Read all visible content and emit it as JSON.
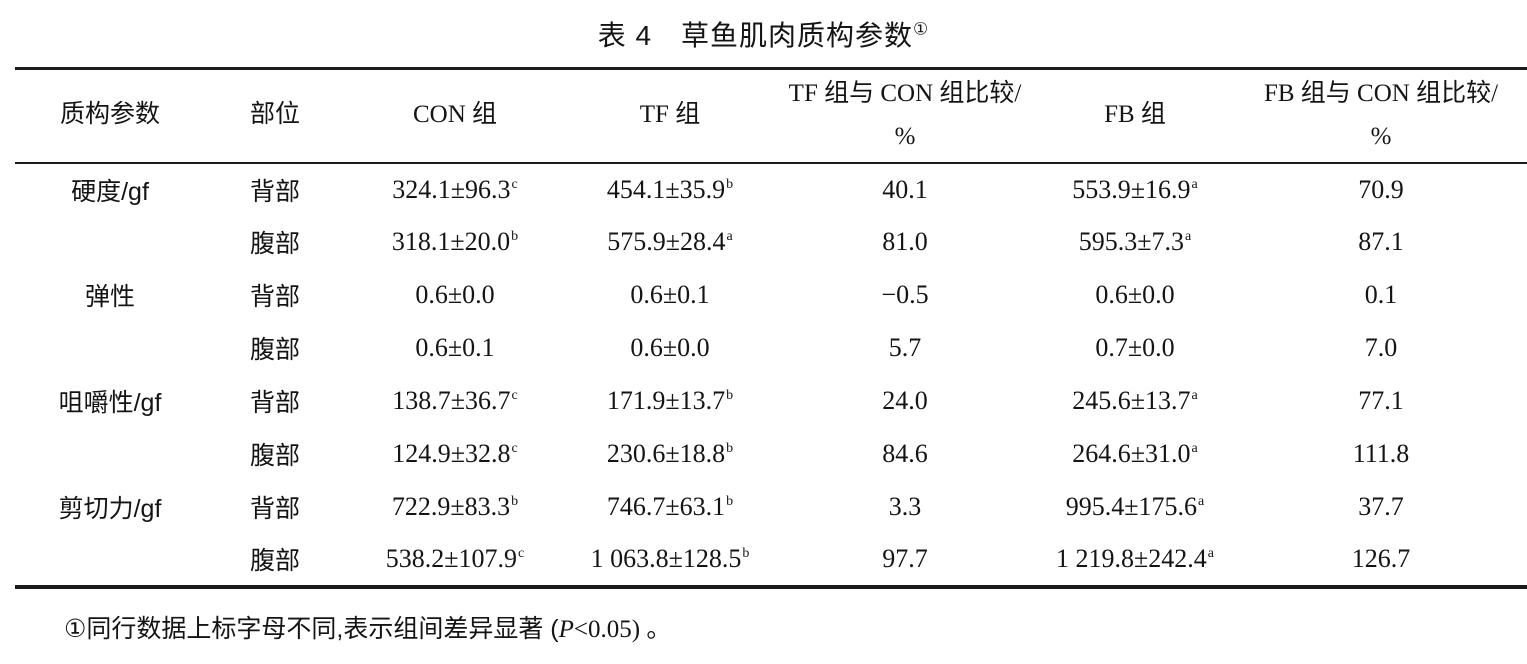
{
  "title": {
    "label": "表 4　草鱼肌肉质构参数",
    "sup": "①"
  },
  "table": {
    "headers": [
      {
        "line1": "质构参数",
        "line2": ""
      },
      {
        "line1": "部位",
        "line2": ""
      },
      {
        "line1": "CON 组",
        "line2": ""
      },
      {
        "line1": "TF 组",
        "line2": ""
      },
      {
        "line1": "TF 组与 CON 组比较/",
        "line2": "%"
      },
      {
        "line1": "FB 组",
        "line2": ""
      },
      {
        "line1": "FB 组与 CON 组比较/",
        "line2": "%"
      }
    ],
    "rows": [
      {
        "cells": [
          {
            "text": "硬度/gf"
          },
          {
            "text": "背部"
          },
          {
            "text": "324.1±96.3",
            "sup": "c"
          },
          {
            "text": "454.1±35.9",
            "sup": "b"
          },
          {
            "text": "40.1"
          },
          {
            "text": "553.9±16.9",
            "sup": "a"
          },
          {
            "text": "70.9"
          }
        ]
      },
      {
        "cells": [
          {
            "text": ""
          },
          {
            "text": "腹部"
          },
          {
            "text": "318.1±20.0",
            "sup": "b"
          },
          {
            "text": "575.9±28.4",
            "sup": "a"
          },
          {
            "text": "81.0"
          },
          {
            "text": "595.3±7.3",
            "sup": "a"
          },
          {
            "text": "87.1"
          }
        ]
      },
      {
        "cells": [
          {
            "text": "弹性"
          },
          {
            "text": "背部"
          },
          {
            "text": "0.6±0.0"
          },
          {
            "text": "0.6±0.1"
          },
          {
            "text": "−0.5"
          },
          {
            "text": "0.6±0.0"
          },
          {
            "text": "0.1"
          }
        ]
      },
      {
        "cells": [
          {
            "text": ""
          },
          {
            "text": "腹部"
          },
          {
            "text": "0.6±0.1"
          },
          {
            "text": "0.6±0.0"
          },
          {
            "text": "5.7"
          },
          {
            "text": "0.7±0.0"
          },
          {
            "text": "7.0"
          }
        ]
      },
      {
        "cells": [
          {
            "text": "咀嚼性/gf"
          },
          {
            "text": "背部"
          },
          {
            "text": "138.7±36.7",
            "sup": "c"
          },
          {
            "text": "171.9±13.7",
            "sup": "b"
          },
          {
            "text": "24.0"
          },
          {
            "text": "245.6±13.7",
            "sup": "a"
          },
          {
            "text": "77.1"
          }
        ]
      },
      {
        "cells": [
          {
            "text": ""
          },
          {
            "text": "腹部"
          },
          {
            "text": "124.9±32.8",
            "sup": "c"
          },
          {
            "text": "230.6±18.8",
            "sup": "b"
          },
          {
            "text": "84.6"
          },
          {
            "text": "264.6±31.0",
            "sup": "a"
          },
          {
            "text": "111.8"
          }
        ]
      },
      {
        "cells": [
          {
            "text": "剪切力/gf"
          },
          {
            "text": "背部"
          },
          {
            "text": "722.9±83.3",
            "sup": "b"
          },
          {
            "text": "746.7±63.1",
            "sup": "b"
          },
          {
            "text": "3.3"
          },
          {
            "text": "995.4±175.6",
            "sup": "a"
          },
          {
            "text": "37.7"
          }
        ]
      },
      {
        "cells": [
          {
            "text": ""
          },
          {
            "text": "腹部"
          },
          {
            "text": "538.2±107.9",
            "sup": "c"
          },
          {
            "text": "1 063.8±128.5",
            "sup": "b"
          },
          {
            "text": "97.7"
          },
          {
            "text": "1 219.8±242.4",
            "sup": "a"
          },
          {
            "text": "126.7"
          }
        ]
      }
    ]
  },
  "footnote": {
    "prefix": "①同行数据上标字母不同,表示组间差异显著 (",
    "p": "P",
    "suffix": "<0.05) 。"
  }
}
